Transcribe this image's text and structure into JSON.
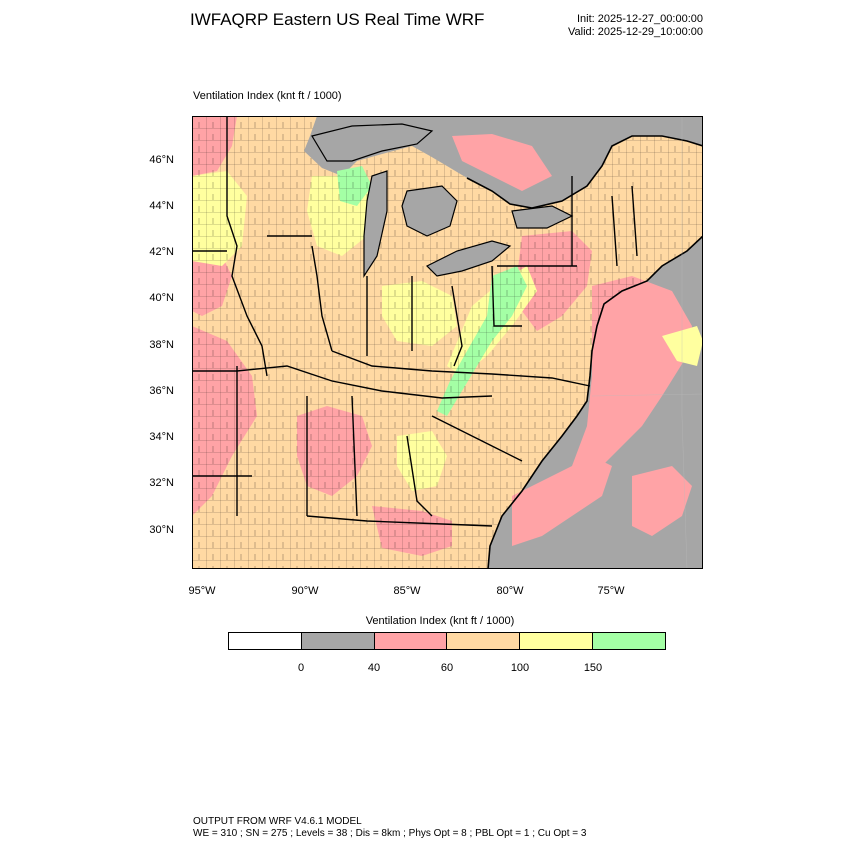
{
  "header": {
    "title": "IWFAQRP Eastern US Real Time WRF",
    "init": "Init: 2025-12-27_00:00:00",
    "valid": "Valid: 2025-12-29_10:00:00"
  },
  "field": {
    "label": "Ventilation Index   (knt ft / 1000)"
  },
  "map": {
    "lat_labels": [
      "46°N",
      "44°N",
      "42°N",
      "40°N",
      "38°N",
      "36°N",
      "34°N",
      "32°N",
      "30°N"
    ],
    "lon_labels": [
      "95°W",
      "90°W",
      "85°W",
      "80°W",
      "75°W"
    ],
    "ocean_color": "#a6a6a6",
    "boundary_color": "#000000"
  },
  "colorbar": {
    "title": "Ventilation Index  (knt ft / 1000)",
    "colors": [
      "#ffffff",
      "#a6a6a6",
      "#ffa3a6",
      "#ffd9a3",
      "#ffff9f",
      "#a4ffa5"
    ],
    "ticks": [
      "0",
      "40",
      "60",
      "100",
      "150"
    ]
  },
  "footer": {
    "line1": "OUTPUT FROM WRF V4.6.1 MODEL",
    "line2": "WE = 310 ; SN = 275 ; Levels = 38 ; Dis = 8km ; Phys Opt = 8 ; PBL Opt = 1 ; Cu Opt = 3"
  }
}
